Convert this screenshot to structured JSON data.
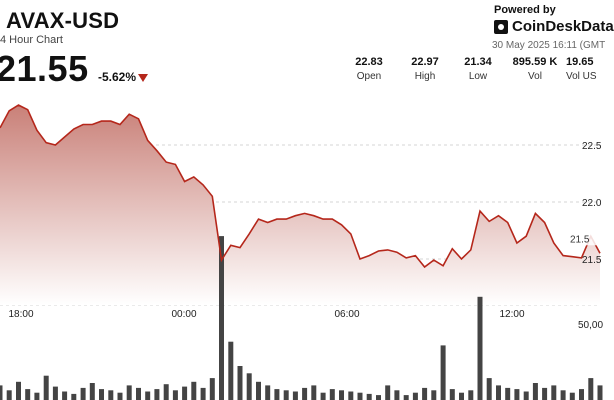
{
  "header": {
    "title": "AVAX-USD",
    "subtitle": "4 Hour Chart",
    "price": "21.55",
    "change": "-5.62%",
    "change_direction_icon": "down-triangle-icon",
    "change_color": "#b5271b"
  },
  "branding": {
    "powered_by": "Powered by",
    "brand_name": "CoinDeskData",
    "logo_icon": "coindesk-logo-icon",
    "timestamp": "30 May 2025 16:11 (GMT"
  },
  "stats": [
    {
      "value": "22.83",
      "label": "Open"
    },
    {
      "value": "22.97",
      "label": "High"
    },
    {
      "value": "21.34",
      "label": "Low"
    },
    {
      "value": "895.59 K",
      "label": "Vol"
    },
    {
      "value": "19.65",
      "label": "Vol US"
    }
  ],
  "chart_data": {
    "type": "area",
    "line_color": "#b5271b",
    "fill_top_color": "#c98078",
    "fill_bottom_color": "#ffffff",
    "x_tick_labels": [
      "18:00",
      "00:00",
      "06:00",
      "12:00"
    ],
    "y_tick_labels": [
      "22.5",
      "22.0",
      "21.5"
    ],
    "volume_tick_label": "50,00",
    "current_price_label": "21.5",
    "price_series": [
      22.65,
      22.8,
      22.85,
      22.81,
      22.63,
      22.52,
      22.5,
      22.57,
      22.64,
      22.68,
      22.68,
      22.71,
      22.71,
      22.68,
      22.77,
      22.73,
      22.54,
      22.45,
      22.35,
      22.33,
      22.18,
      22.22,
      22.15,
      22.05,
      21.49,
      21.62,
      21.6,
      21.72,
      21.85,
      21.82,
      21.85,
      21.85,
      21.88,
      21.9,
      21.88,
      21.85,
      21.85,
      21.8,
      21.72,
      21.5,
      21.53,
      21.57,
      21.58,
      21.56,
      21.51,
      21.53,
      21.43,
      21.49,
      21.44,
      21.59,
      21.5,
      21.58,
      21.92,
      21.83,
      21.88,
      21.82,
      21.64,
      21.7,
      21.9,
      21.82,
      21.64,
      21.53,
      21.52,
      21.51,
      21.7,
      21.55
    ],
    "volume_series": [
      12000,
      8000,
      15000,
      9000,
      6000,
      20000,
      11000,
      7000,
      5000,
      10000,
      14000,
      9000,
      8000,
      6000,
      12000,
      10000,
      7000,
      9000,
      13000,
      8000,
      11000,
      15000,
      10000,
      18000,
      135000,
      48000,
      28000,
      22000,
      15000,
      12000,
      9000,
      8000,
      7000,
      10000,
      12000,
      6000,
      9000,
      8000,
      7000,
      6000,
      5000,
      4000,
      12000,
      8000,
      4000,
      6000,
      10000,
      8000,
      45000,
      9000,
      6000,
      8000,
      85000,
      18000,
      12000,
      10000,
      9000,
      7000,
      14000,
      10000,
      12000,
      8000,
      6000,
      9000,
      18000,
      12000
    ]
  }
}
